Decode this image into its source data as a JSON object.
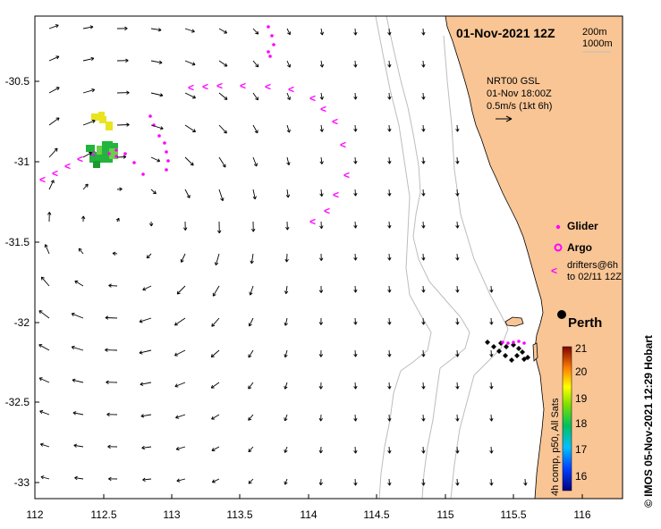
{
  "map": {
    "title": "01-Nov-2021 12Z",
    "depth_labels": [
      "200m",
      "1000m"
    ],
    "vector_block": {
      "model": "NRT00 GSL",
      "time": "01-Nov 18:00Z",
      "scale": "0.5m/s (1kt 6h)"
    },
    "city": "Perth",
    "credit": "© IMOS 05-Nov-2021 12:29 Hobart"
  },
  "axes": {
    "x_ticks": [
      "112",
      "112.5",
      "113",
      "113.5",
      "114",
      "114.5",
      "115",
      "115.5",
      "116"
    ],
    "y_ticks": [
      "-30.5",
      "-31",
      "-31.5",
      "-32",
      "-32.5",
      "-33"
    ]
  },
  "legend": {
    "glider": "Glider",
    "argo": "Argo",
    "drifters_line1": "drifters@6h",
    "drifters_line2": "to 02/11 12Z"
  },
  "colorbar": {
    "label": "4h comp, p50, All Sats",
    "ticks": [
      "21",
      "20",
      "19",
      "18",
      "17",
      "16"
    ]
  },
  "colors": {
    "land": "#f9c595",
    "drifter": "#ff00ff",
    "sst_green": "#22b43c",
    "sst_yellow": "#e8e420",
    "contour": "#bdbdbd"
  }
}
